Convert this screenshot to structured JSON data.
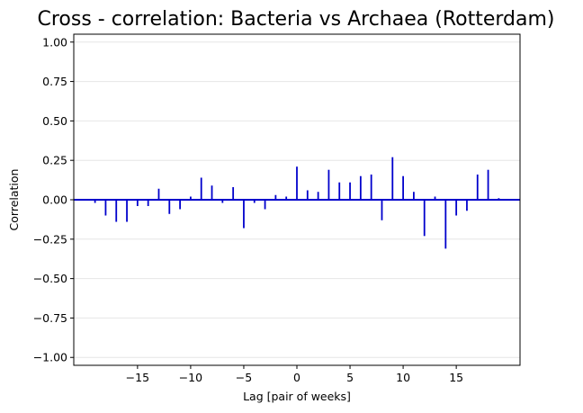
{
  "chart_data": {
    "type": "bar",
    "title": "Cross - correlation: Bacteria vs Archaea (Rotterdam)",
    "xlabel": "Lag [pair of weeks]",
    "ylabel": "Correlation",
    "xlim": [
      -21,
      21
    ],
    "ylim": [
      -1.05,
      1.05
    ],
    "x_ticks": [
      -15,
      -10,
      -5,
      0,
      5,
      10,
      15
    ],
    "x_tick_labels": [
      "−15",
      "−10",
      "−5",
      "0",
      "5",
      "10",
      "15"
    ],
    "y_ticks": [
      -1.0,
      -0.75,
      -0.5,
      -0.25,
      0.0,
      0.25,
      0.5,
      0.75,
      1.0
    ],
    "y_tick_labels": [
      "−1.00",
      "−0.75",
      "−0.50",
      "−0.25",
      "0.00",
      "0.25",
      "0.50",
      "0.75",
      "1.00"
    ],
    "grid": "horizontal",
    "color": "#0000cc",
    "x": [
      -19,
      -18,
      -17,
      -16,
      -15,
      -14,
      -13,
      -12,
      -11,
      -10,
      -9,
      -8,
      -7,
      -6,
      -5,
      -4,
      -3,
      -2,
      -1,
      0,
      1,
      2,
      3,
      4,
      5,
      6,
      7,
      8,
      9,
      10,
      11,
      12,
      13,
      14,
      15,
      16,
      17,
      18,
      19
    ],
    "values": [
      -0.02,
      -0.1,
      -0.14,
      -0.14,
      -0.04,
      -0.04,
      0.07,
      -0.09,
      -0.06,
      0.02,
      0.14,
      0.09,
      -0.02,
      0.08,
      -0.18,
      -0.02,
      -0.06,
      0.03,
      0.02,
      0.21,
      0.06,
      0.05,
      0.19,
      0.11,
      0.11,
      0.15,
      0.16,
      -0.13,
      0.27,
      0.15,
      0.05,
      -0.23,
      0.02,
      -0.31,
      -0.1,
      -0.07,
      0.16,
      0.19,
      0.01
    ]
  }
}
